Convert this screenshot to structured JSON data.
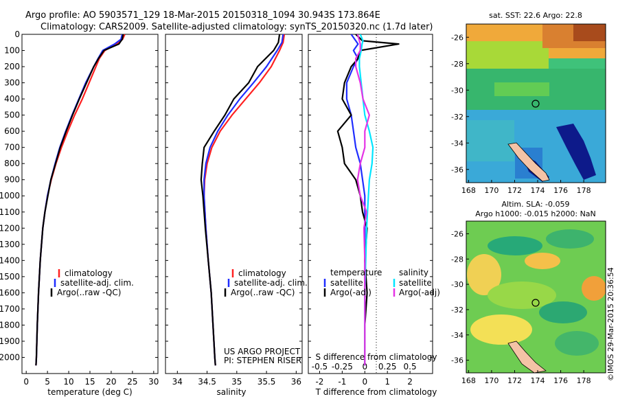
{
  "header": {
    "line1": "Argo profile: AO 5903571_129 18-Mar-2015 20150318_1094 30.943S 173.864E",
    "line2": "Climatology: CARS2009. Satellite-adjusted climatology: synTS_20150320.nc (1.7d later)"
  },
  "colors": {
    "climatology": "#ff2020",
    "satellite": "#1f2dff",
    "argo": "#000000",
    "salinity_satellite": "#00e5ff",
    "salinity_argo": "#e533e5"
  },
  "chart_data": [
    {
      "type": "line",
      "panel": "temperature",
      "xlabel": "temperature (deg C)",
      "ylabel": "",
      "xlim": [
        -1,
        31
      ],
      "ylim": [
        2100,
        0
      ],
      "x_ticks": [
        0,
        5,
        10,
        15,
        20,
        25,
        30
      ],
      "y_ticks": [
        0,
        100,
        200,
        300,
        400,
        500,
        600,
        700,
        800,
        900,
        1000,
        1100,
        1200,
        1300,
        1400,
        1500,
        1600,
        1700,
        1800,
        1900,
        2000
      ],
      "legend": [
        "climatology",
        "satellite-adj. clim.",
        "Argo(..raw -QC)"
      ],
      "depth": [
        0,
        30,
        60,
        100,
        150,
        200,
        300,
        400,
        500,
        600,
        700,
        800,
        900,
        1000,
        1100,
        1200,
        1400,
        1600,
        1800,
        2000,
        2050
      ],
      "series": [
        {
          "name": "climatology",
          "values": [
            23.2,
            22.7,
            21.2,
            18.5,
            17.2,
            16.4,
            14.8,
            13.2,
            11.4,
            9.8,
            8.3,
            7.0,
            5.9,
            5.0,
            4.4,
            3.9,
            3.3,
            2.9,
            2.6,
            2.4,
            2.3
          ]
        },
        {
          "name": "satellite-adj. clim.",
          "values": [
            22.6,
            22.3,
            20.8,
            18.0,
            16.9,
            15.9,
            14.0,
            12.4,
            10.8,
            9.3,
            7.9,
            6.8,
            5.8,
            5.0,
            4.4,
            3.9,
            3.3,
            2.9,
            2.6,
            2.4,
            2.3
          ]
        },
        {
          "name": "Argo(..raw -QC)",
          "values": [
            22.8,
            22.6,
            21.8,
            18.3,
            17.0,
            15.9,
            14.2,
            12.5,
            10.9,
            9.4,
            8.0,
            6.9,
            5.8,
            5.1,
            4.4,
            3.9,
            3.3,
            2.9,
            2.6,
            2.4,
            2.3
          ]
        }
      ]
    },
    {
      "type": "line",
      "panel": "salinity",
      "xlabel": "salinity",
      "ylabel": "",
      "xlim": [
        33.8,
        36.1
      ],
      "ylim": [
        2100,
        0
      ],
      "x_ticks": [
        34,
        34.5,
        35,
        35.5,
        36
      ],
      "legend": [
        "climatology",
        "satellite-adj. clim.",
        "Argo(..raw -QC)"
      ],
      "annotation": [
        "US ARGO PROJECT",
        "PI: STEPHEN RISER"
      ],
      "depth": [
        0,
        50,
        100,
        200,
        300,
        400,
        500,
        600,
        700,
        800,
        900,
        1000,
        1200,
        1400,
        1600,
        1800,
        2000,
        2050
      ],
      "series": [
        {
          "name": "climatology",
          "values": [
            35.8,
            35.78,
            35.72,
            35.58,
            35.38,
            35.15,
            34.92,
            34.72,
            34.58,
            34.5,
            34.46,
            34.45,
            34.48,
            34.52,
            34.57,
            34.6,
            34.63,
            34.64
          ]
        },
        {
          "name": "satellite-adj. clim.",
          "values": [
            35.78,
            35.76,
            35.68,
            35.5,
            35.28,
            35.05,
            34.85,
            34.68,
            34.55,
            34.48,
            34.45,
            34.45,
            34.48,
            34.52,
            34.57,
            34.6,
            34.63,
            34.64
          ]
        },
        {
          "name": "Argo(..raw -QC)",
          "values": [
            35.72,
            35.7,
            35.62,
            35.35,
            35.2,
            34.95,
            34.8,
            34.62,
            34.45,
            34.42,
            34.4,
            34.43,
            34.47,
            34.52,
            34.57,
            34.6,
            34.63,
            34.64
          ]
        }
      ]
    },
    {
      "type": "line",
      "panel": "differences",
      "xlabel": "T difference from climatology",
      "xlabel_top": "S difference from climatology",
      "xlim": [
        -2.5,
        3.0
      ],
      "ylim": [
        2100,
        0
      ],
      "x_ticks_T": [
        -2,
        -1,
        0,
        1,
        2
      ],
      "x_ticks_S": [
        -0.5,
        -0.25,
        0,
        0.25,
        0.5
      ],
      "legend_titles": [
        "temperature",
        "salinity"
      ],
      "legend": [
        "satellite",
        "Argo(-adj)",
        "satellite",
        "Argo(-adj)"
      ],
      "depth": [
        0,
        40,
        60,
        100,
        150,
        200,
        300,
        400,
        500,
        600,
        700,
        800,
        900,
        1000,
        1100,
        1200,
        1400,
        1600,
        1800,
        2000,
        2050
      ],
      "series": [
        {
          "name": "temperature satellite",
          "values": [
            -0.6,
            -0.4,
            -0.3,
            -0.5,
            -0.3,
            -0.5,
            -0.8,
            -0.8,
            -0.6,
            -0.5,
            -0.4,
            -0.2,
            -0.1,
            0.0,
            0.0,
            0.0,
            0.0,
            0.0,
            0.0,
            0.0,
            0.0
          ]
        },
        {
          "name": "temperature Argo(-adj)",
          "values": [
            -0.4,
            -0.1,
            1.5,
            -0.2,
            -0.3,
            -0.6,
            -0.9,
            -1.0,
            -0.6,
            -1.2,
            -1.0,
            -0.9,
            -0.4,
            -0.2,
            -0.1,
            0.1,
            0.0,
            0.1,
            0.0,
            0.0,
            0.0
          ]
        },
        {
          "name": "salinity satellite",
          "values": [
            -0.05,
            -0.02,
            -0.03,
            -0.04,
            -0.06,
            -0.06,
            -0.04,
            -0.02,
            0.0,
            0.05,
            0.09,
            0.08,
            0.05,
            0.04,
            0.03,
            0.02,
            0.01,
            0.0,
            0.0,
            0.0,
            0.0
          ]
        },
        {
          "name": "salinity Argo(-adj)",
          "values": [
            -0.08,
            -0.06,
            -0.05,
            -0.05,
            -0.1,
            -0.1,
            -0.05,
            -0.02,
            0.05,
            0.0,
            0.0,
            -0.05,
            -0.08,
            -0.05,
            0.02,
            -0.01,
            0.0,
            0.0,
            0.0,
            0.0,
            0.0
          ]
        }
      ]
    },
    {
      "type": "heatmap",
      "panel": "sst-map",
      "title": "sat. SST: 22.6  Argo: 22.8",
      "xlim": [
        167.8,
        179.9
      ],
      "ylim": [
        -37.0,
        -25.0
      ],
      "x_ticks": [
        168,
        170,
        172,
        174,
        176,
        178
      ],
      "y_ticks": [
        -26,
        -28,
        -30,
        -32,
        -34,
        -36
      ],
      "marker": {
        "lon": 173.864,
        "lat": -30.943
      }
    },
    {
      "type": "heatmap",
      "panel": "sla-map",
      "title": [
        "Altim. SLA: -0.059",
        "Argo h1000: -0.015 h2000: NaN"
      ],
      "xlim": [
        167.8,
        179.9
      ],
      "ylim": [
        -37.0,
        -25.0
      ],
      "x_ticks": [
        168,
        170,
        172,
        174,
        176,
        178
      ],
      "y_ticks": [
        -26,
        -28,
        -30,
        -32,
        -34,
        -36
      ],
      "marker": {
        "lon": 173.864,
        "lat": -30.943
      }
    }
  ],
  "footer_stamp": "©IMOS 29-Mar-2015 20:36:54"
}
